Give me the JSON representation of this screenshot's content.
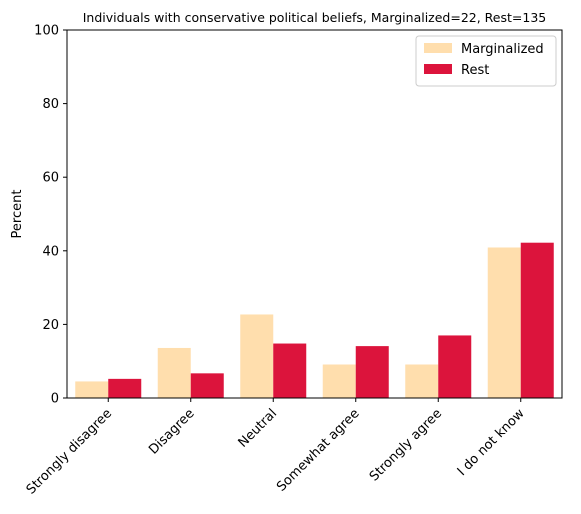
{
  "chart_data": {
    "type": "bar",
    "title": "Individuals with conservative political beliefs, Marginalized=22, Rest=135",
    "xlabel": "",
    "ylabel": "Percent",
    "ylim": [
      0,
      100
    ],
    "yticks": [
      "0",
      "20",
      "40",
      "60",
      "80",
      "100"
    ],
    "categories": [
      "Strongly disagree",
      "Disagree",
      "Neutral",
      "Somewhat agree",
      "Strongly agree",
      "I do not know"
    ],
    "series": [
      {
        "name": "Marginalized",
        "color": "#ffdead",
        "values": [
          4.5,
          13.6,
          22.7,
          9.1,
          9.1,
          40.9
        ]
      },
      {
        "name": "Rest",
        "color": "#dc143c",
        "values": [
          5.2,
          6.7,
          14.8,
          14.1,
          17.0,
          42.2
        ]
      }
    ],
    "legend_position": "top-right",
    "grid": false
  }
}
